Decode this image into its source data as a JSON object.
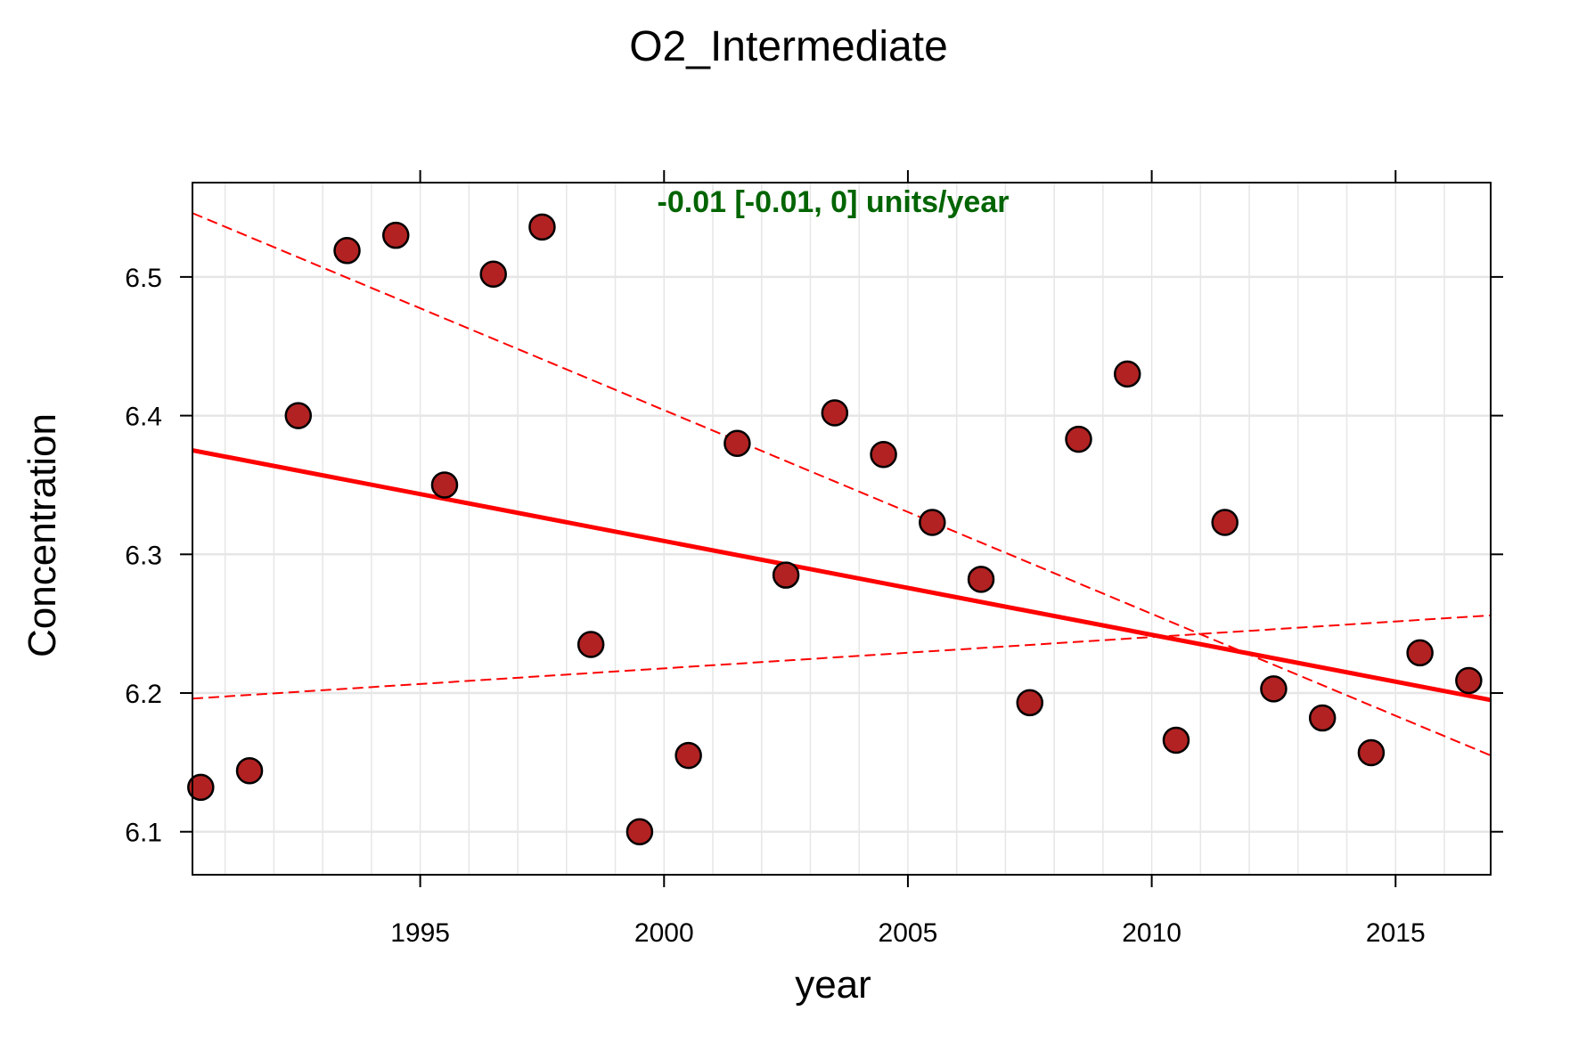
{
  "chart_data": {
    "type": "scatter",
    "title": "O2_Intermediate",
    "xlabel": "year",
    "ylabel": "Concentration",
    "xlim": [
      1990.33,
      2016.95
    ],
    "ylim": [
      6.069,
      6.568
    ],
    "x_ticks": [
      1995,
      2000,
      2005,
      2010,
      2015
    ],
    "x_tick_labels": [
      "1995",
      "2000",
      "2005",
      "2010",
      "2015"
    ],
    "y_ticks": [
      6.1,
      6.2,
      6.3,
      6.4,
      6.5
    ],
    "y_tick_labels": [
      "6.1",
      "6.2",
      "6.3",
      "6.4",
      "6.5"
    ],
    "grid": true,
    "annotation": "-0.01 [-0.01, 0] units/year",
    "colors": {
      "points_fill": "#b22222",
      "points_stroke": "#000000",
      "trend": "#ff0000",
      "annotation": "#006400",
      "grid": "#e6e6e6"
    },
    "series": [
      {
        "name": "observations",
        "x": [
          1990.5,
          1991.5,
          1992.5,
          1993.5,
          1994.5,
          1995.5,
          1996.5,
          1997.5,
          1998.5,
          1999.5,
          2000.5,
          2001.5,
          2002.5,
          2003.5,
          2004.5,
          2005.5,
          2006.5,
          2007.5,
          2008.5,
          2009.5,
          2010.5,
          2011.5,
          2012.5,
          2013.5,
          2014.5,
          2015.5,
          2016.5
        ],
        "y": [
          6.132,
          6.144,
          6.4,
          6.519,
          6.53,
          6.35,
          6.502,
          6.536,
          6.235,
          6.1,
          6.155,
          6.38,
          6.285,
          6.402,
          6.372,
          6.323,
          6.282,
          6.193,
          6.383,
          6.43,
          6.166,
          6.323,
          6.203,
          6.182,
          6.157,
          6.229,
          6.209
        ]
      }
    ],
    "trend_line": {
      "x": [
        1990.33,
        2016.95
      ],
      "y": [
        6.375,
        6.195
      ]
    },
    "ci_lines": [
      {
        "name": "upper",
        "x": [
          1990.33,
          2016.95
        ],
        "y": [
          6.546,
          6.155
        ]
      },
      {
        "name": "lower",
        "x": [
          1990.33,
          2016.95
        ],
        "y": [
          6.196,
          6.256
        ]
      }
    ]
  }
}
